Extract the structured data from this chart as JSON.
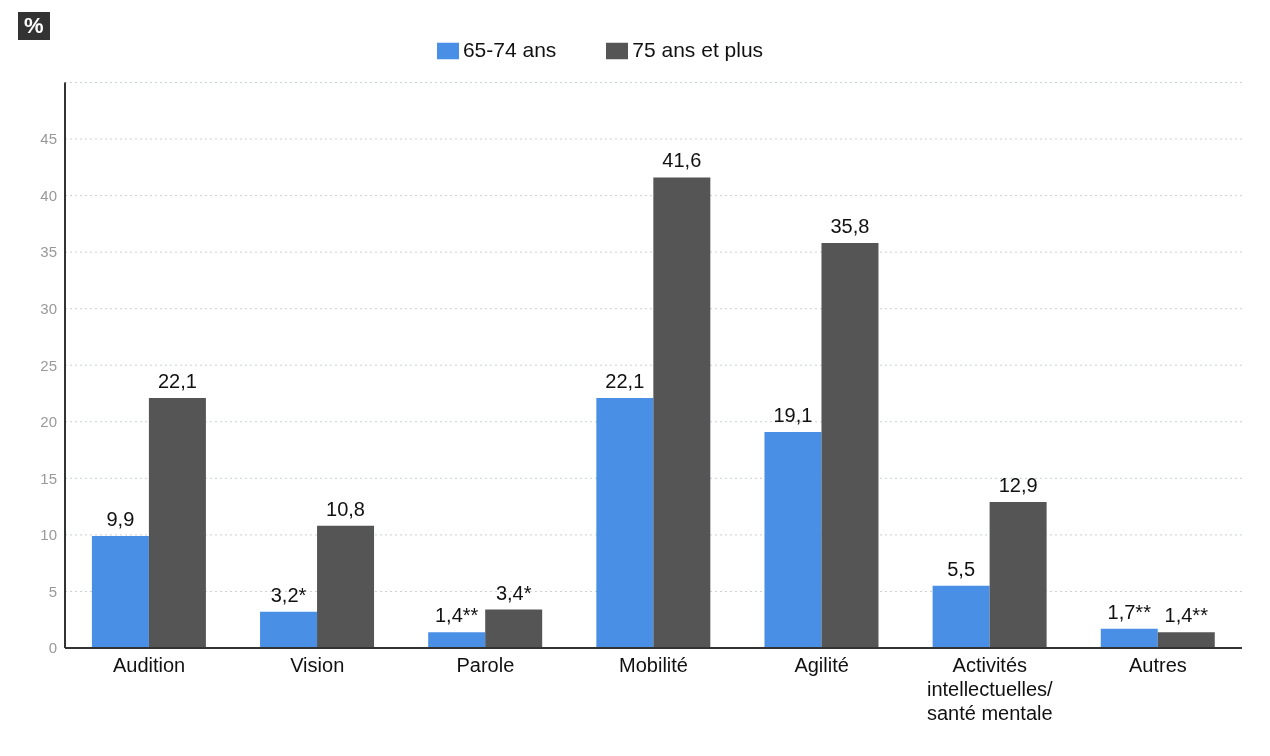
{
  "chart_data": {
    "type": "bar",
    "ylabel": "%",
    "categories": [
      "Audition",
      "Vision",
      "Parole",
      "Mobilité",
      "Agilité",
      "Activités intellectuelles/ santé mentale",
      "Autres"
    ],
    "series": [
      {
        "name": "65-74 ans",
        "color": "#4a8fe6",
        "values": [
          9.9,
          3.2,
          1.4,
          22.1,
          19.1,
          5.5,
          1.7
        ],
        "value_labels": [
          "9,9",
          "3,2*",
          "1,4**",
          "22,1",
          "19,1",
          "5,5",
          "1,7**"
        ]
      },
      {
        "name": "75 ans et plus",
        "color": "#555555",
        "values": [
          22.1,
          10.8,
          3.4,
          41.6,
          35.8,
          12.9,
          1.4
        ],
        "value_labels": [
          "22,1",
          "10,8",
          "3,4*",
          "41,6",
          "35,8",
          "12,9",
          "1,4**"
        ]
      }
    ],
    "ylim": [
      0,
      50
    ],
    "yticks": [
      0,
      5,
      10,
      15,
      20,
      25,
      30,
      35,
      40,
      45
    ],
    "grid": "y",
    "legend": "top"
  }
}
